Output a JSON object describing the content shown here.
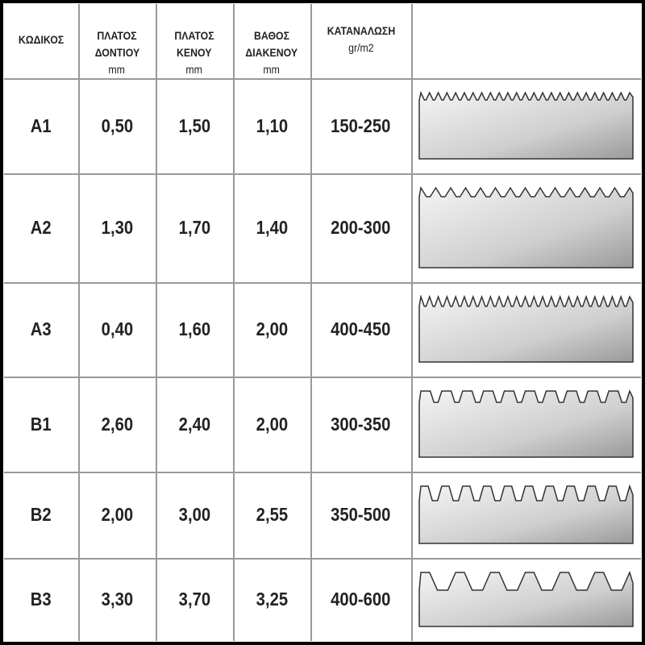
{
  "table": {
    "header": [
      [
        "ΚΩΔΙΚΟΣ"
      ],
      [
        "ΠΛΑΤΟΣ",
        "ΔΟΝΤΙΟΥ",
        "mm"
      ],
      [
        "ΠΛΑΤΟΣ",
        "ΚΕΝΟΥ",
        "mm"
      ],
      [
        "ΒΑΘΟΣ",
        "ΔΙΑΚΕΝΟΥ",
        "mm"
      ],
      [
        "ΚΑΤΑΝΑΛΩΣΗ",
        "gr/m2"
      ]
    ],
    "rows": [
      [
        "A1",
        "0,50",
        "1,50",
        "1,10",
        "150-250"
      ],
      [
        "A2",
        "1,30",
        "1,70",
        "1,40",
        "200-300"
      ],
      [
        "A3",
        "0,40",
        "1,60",
        "2,00",
        "400-450"
      ],
      [
        "B1",
        "2,60",
        "2,40",
        "2,00",
        "300-350"
      ],
      [
        "B2",
        "2,00",
        "3,00",
        "2,55",
        "350-500"
      ],
      [
        "B3",
        "3,30",
        "3,70",
        "3,25",
        "400-600"
      ]
    ]
  }
}
